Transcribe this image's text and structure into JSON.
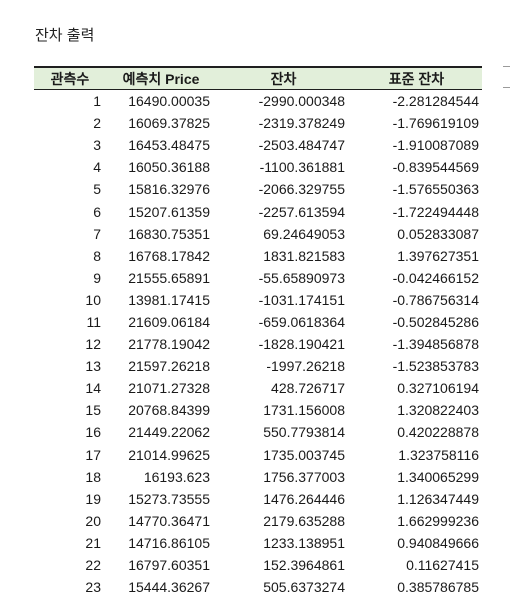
{
  "title": "잔차 출력",
  "columns": [
    "관측수",
    "예측치 Price",
    "잔차",
    "표준 잔차"
  ],
  "rows": [
    {
      "n": "1",
      "pred": "16490.00035",
      "res": "-2990.000348",
      "std": "-2.281284544"
    },
    {
      "n": "2",
      "pred": "16069.37825",
      "res": "-2319.378249",
      "std": "-1.769619109"
    },
    {
      "n": "3",
      "pred": "16453.48475",
      "res": "-2503.484747",
      "std": "-1.910087089"
    },
    {
      "n": "4",
      "pred": "16050.36188",
      "res": "-1100.361881",
      "std": "-0.839544569"
    },
    {
      "n": "5",
      "pred": "15816.32976",
      "res": "-2066.329755",
      "std": "-1.576550363"
    },
    {
      "n": "6",
      "pred": "15207.61359",
      "res": "-2257.613594",
      "std": "-1.722494448"
    },
    {
      "n": "7",
      "pred": "16830.75351",
      "res": "69.24649053",
      "std": "0.052833087"
    },
    {
      "n": "8",
      "pred": "16768.17842",
      "res": "1831.821583",
      "std": "1.397627351"
    },
    {
      "n": "9",
      "pred": "21555.65891",
      "res": "-55.65890973",
      "std": "-0.042466152"
    },
    {
      "n": "10",
      "pred": "13981.17415",
      "res": "-1031.174151",
      "std": "-0.786756314"
    },
    {
      "n": "11",
      "pred": "21609.06184",
      "res": "-659.0618364",
      "std": "-0.502845286"
    },
    {
      "n": "12",
      "pred": "21778.19042",
      "res": "-1828.190421",
      "std": "-1.394856878"
    },
    {
      "n": "13",
      "pred": "21597.26218",
      "res": "-1997.26218",
      "std": "-1.523853783"
    },
    {
      "n": "14",
      "pred": "21071.27328",
      "res": "428.726717",
      "std": "0.327106194"
    },
    {
      "n": "15",
      "pred": "20768.84399",
      "res": "1731.156008",
      "std": "1.320822403"
    },
    {
      "n": "16",
      "pred": "21449.22062",
      "res": "550.7793814",
      "std": "0.420228878"
    },
    {
      "n": "17",
      "pred": "21014.99625",
      "res": "1735.003745",
      "std": "1.323758116"
    },
    {
      "n": "18",
      "pred": "16193.623",
      "res": "1756.377003",
      "std": "1.340065299"
    },
    {
      "n": "19",
      "pred": "15273.73555",
      "res": "1476.264446",
      "std": "1.126347449"
    },
    {
      "n": "20",
      "pred": "14770.36471",
      "res": "2179.635288",
      "std": "1.662999236"
    },
    {
      "n": "21",
      "pred": "14716.86105",
      "res": "1233.138951",
      "std": "0.940849666"
    },
    {
      "n": "22",
      "pred": "16797.60351",
      "res": "152.3964861",
      "std": "0.11627415"
    },
    {
      "n": "23",
      "pred": "15444.36267",
      "res": "505.6373274",
      "std": "0.385786785"
    }
  ],
  "colors": {
    "header_fill": "#e2efda",
    "rule": "#1f1f1f"
  }
}
